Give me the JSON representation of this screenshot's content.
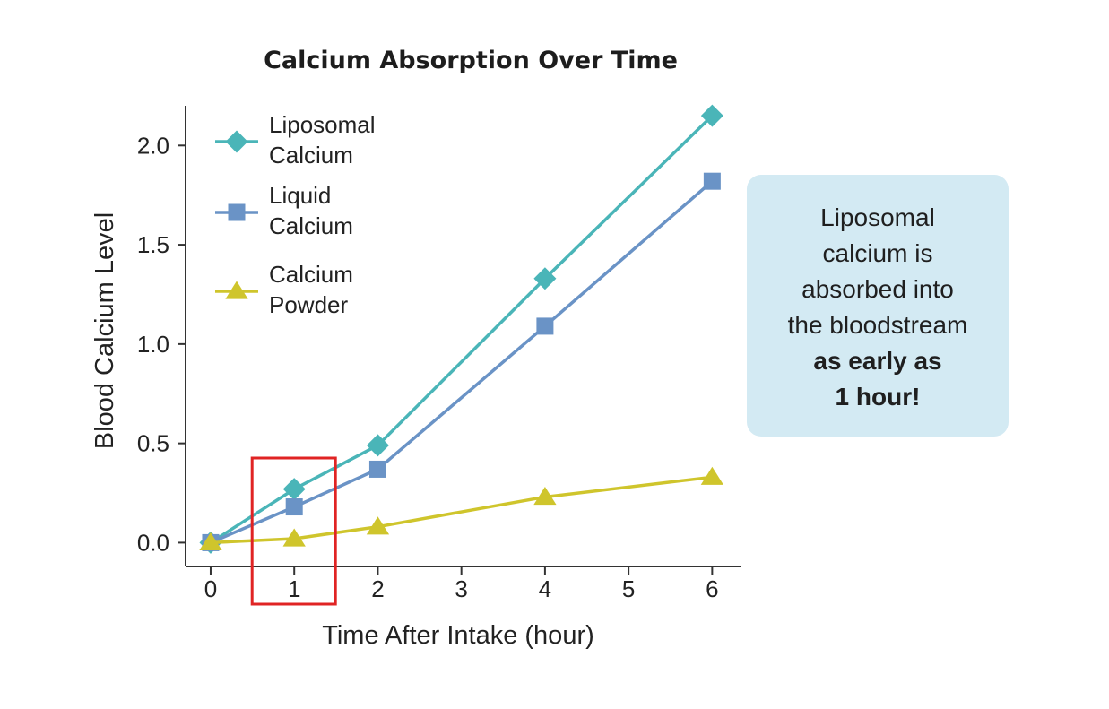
{
  "chart_data": {
    "type": "line",
    "title": "Calcium Absorption Over Time",
    "xlabel": "Time After Intake (hour)",
    "ylabel": "Blood Calcium Level",
    "x_ticks": [
      "0",
      "1",
      "2",
      "3",
      "4",
      "5",
      "6"
    ],
    "y_ticks": [
      "0.0",
      "0.5",
      "1.0",
      "1.5",
      "2.0"
    ],
    "xlim": [
      -0.3,
      6.35
    ],
    "ylim": [
      -0.12,
      2.2
    ],
    "grid": false,
    "legend_position": "top-left",
    "x": [
      0,
      1,
      2,
      4,
      6
    ],
    "series": [
      {
        "name_line1": "Liposomal",
        "name_line2": "Calcium",
        "values": [
          0.0,
          0.27,
          0.49,
          1.33,
          2.15
        ],
        "color": "#4ab5b8",
        "marker": "diamond"
      },
      {
        "name_line1": "Liquid",
        "name_line2": "Calcium",
        "values": [
          0.0,
          0.18,
          0.37,
          1.09,
          1.82
        ],
        "color": "#6a93c6",
        "marker": "square"
      },
      {
        "name_line1": "Calcium",
        "name_line2": "Powder",
        "values": [
          0.0,
          0.02,
          0.08,
          0.23,
          0.33
        ],
        "color": "#cfc52c",
        "marker": "triangle"
      }
    ],
    "highlight": {
      "x": 1,
      "color": "#e02424"
    }
  },
  "callout": {
    "line1": "Liposomal",
    "line2": "calcium is",
    "line3": "absorbed into",
    "line4": "the bloodstream",
    "bold_line1": "as early as",
    "bold_line2": "1 hour!"
  }
}
